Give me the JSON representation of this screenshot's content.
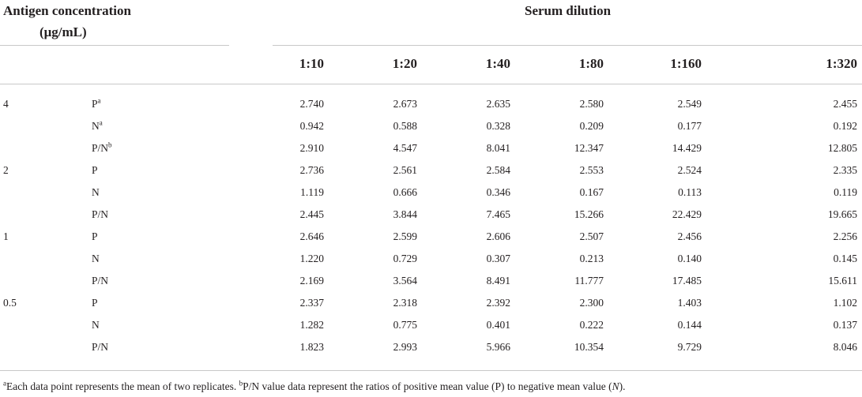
{
  "table": {
    "header": {
      "antigen_line1": "Antigen concentration",
      "antigen_line2": "(μg/mL)",
      "serum": "Serum dilution",
      "dilutions": [
        "1:10",
        "1:20",
        "1:40",
        "1:80",
        "1:160",
        "1:320"
      ]
    },
    "groups": [
      {
        "conc": "4",
        "rows": [
          {
            "label": "P",
            "sup": "a",
            "values": [
              "2.740",
              "2.673",
              "2.635",
              "2.580",
              "2.549",
              "2.455"
            ]
          },
          {
            "label": "N",
            "sup": "a",
            "values": [
              "0.942",
              "0.588",
              "0.328",
              "0.209",
              "0.177",
              "0.192"
            ]
          },
          {
            "label": "P/N",
            "sup": "b",
            "values": [
              "2.910",
              "4.547",
              "8.041",
              "12.347",
              "14.429",
              "12.805"
            ]
          }
        ]
      },
      {
        "conc": "2",
        "rows": [
          {
            "label": "P",
            "sup": "",
            "values": [
              "2.736",
              "2.561",
              "2.584",
              "2.553",
              "2.524",
              "2.335"
            ]
          },
          {
            "label": "N",
            "sup": "",
            "values": [
              "1.119",
              "0.666",
              "0.346",
              "0.167",
              "0.113",
              "0.119"
            ]
          },
          {
            "label": "P/N",
            "sup": "",
            "values": [
              "2.445",
              "3.844",
              "7.465",
              "15.266",
              "22.429",
              "19.665"
            ]
          }
        ]
      },
      {
        "conc": "1",
        "rows": [
          {
            "label": "P",
            "sup": "",
            "values": [
              "2.646",
              "2.599",
              "2.606",
              "2.507",
              "2.456",
              "2.256"
            ]
          },
          {
            "label": "N",
            "sup": "",
            "values": [
              "1.220",
              "0.729",
              "0.307",
              "0.213",
              "0.140",
              "0.145"
            ]
          },
          {
            "label": "P/N",
            "sup": "",
            "values": [
              "2.169",
              "3.564",
              "8.491",
              "11.777",
              "17.485",
              "15.611"
            ]
          }
        ]
      },
      {
        "conc": "0.5",
        "rows": [
          {
            "label": "P",
            "sup": "",
            "values": [
              "2.337",
              "2.318",
              "2.392",
              "2.300",
              "1.403",
              "1.102"
            ]
          },
          {
            "label": "N",
            "sup": "",
            "values": [
              "1.282",
              "0.775",
              "0.401",
              "0.222",
              "0.144",
              "0.137"
            ]
          },
          {
            "label": "P/N",
            "sup": "",
            "values": [
              "1.823",
              "2.993",
              "5.966",
              "10.354",
              "9.729",
              "8.046"
            ]
          }
        ]
      }
    ],
    "footnote": {
      "a_mark": "a",
      "a_text": "Each data point represents the mean of two replicates.",
      "b_mark": "b",
      "b_text_1": "P/N value data represent the ratios of positive mean value (P) to negative mean value (",
      "b_italic": "N",
      "b_text_2": ")."
    }
  }
}
